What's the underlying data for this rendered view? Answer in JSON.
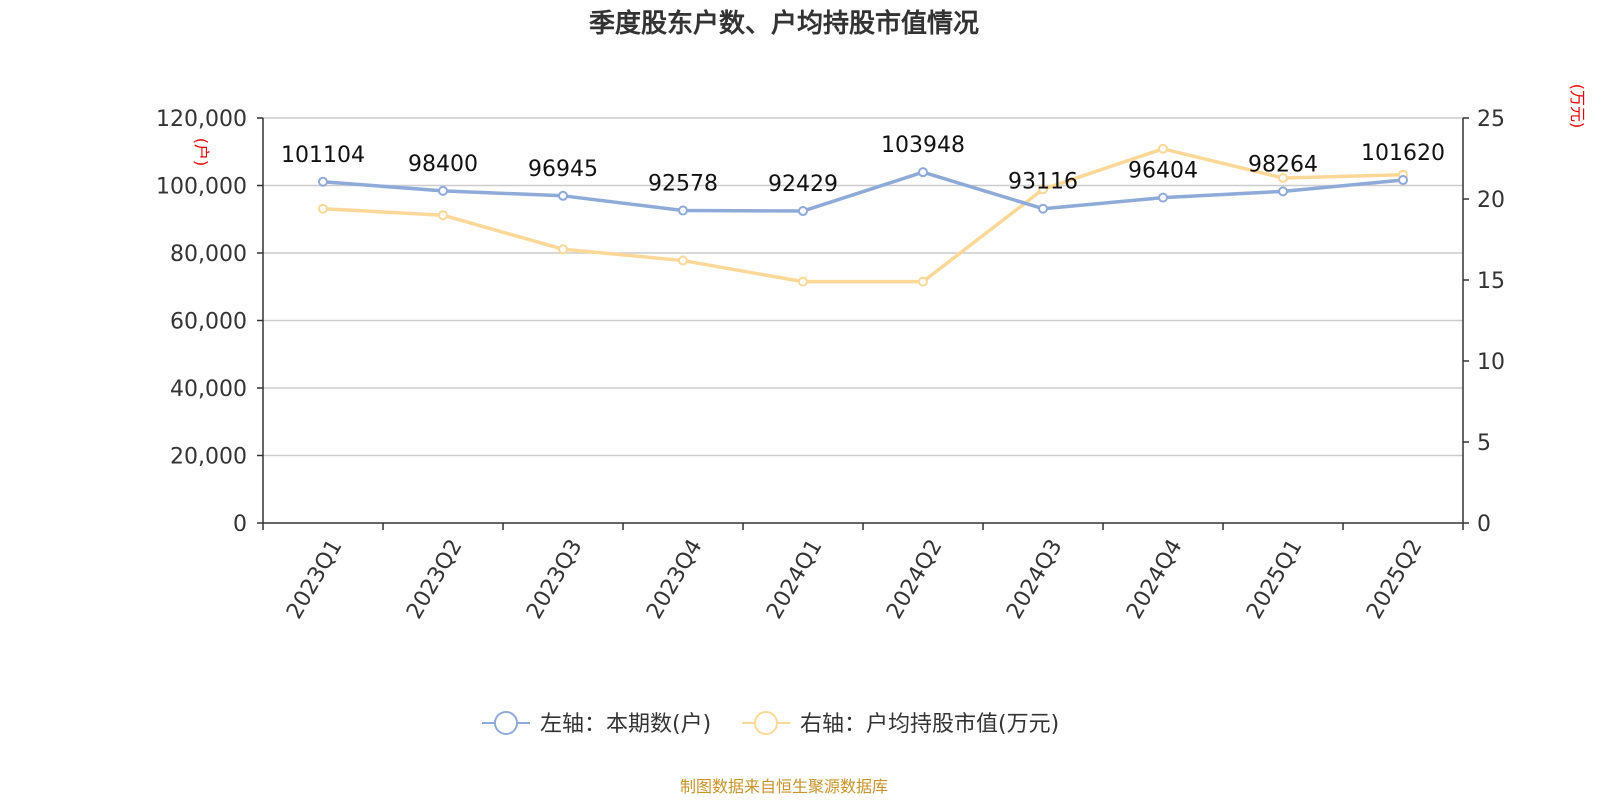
{
  "chart_data": {
    "type": "line",
    "title": "季度股东户数、户均持股市值情况",
    "categories": [
      "2023Q1",
      "2023Q2",
      "2023Q3",
      "2023Q4",
      "2024Q1",
      "2024Q2",
      "2024Q3",
      "2024Q4",
      "2025Q1",
      "2025Q2"
    ],
    "left_axis": {
      "unit": "(户)",
      "ylim": [
        0,
        120000
      ],
      "ticks": [
        "0",
        "20,000",
        "40,000",
        "60,000",
        "80,000",
        "100,000",
        "120,000"
      ],
      "tick_values": [
        0,
        20000,
        40000,
        60000,
        80000,
        100000,
        120000
      ]
    },
    "right_axis": {
      "unit": "(万元)",
      "ylim": [
        0,
        25
      ],
      "ticks": [
        "0",
        "5",
        "10",
        "15",
        "20",
        "25"
      ],
      "tick_values": [
        0,
        5,
        10,
        15,
        20,
        25
      ]
    },
    "series": [
      {
        "name": "左轴：本期数(户)",
        "axis": "left",
        "color": "#8eaad8",
        "values": [
          101104,
          98400,
          96945,
          92578,
          92429,
          103948,
          93116,
          96404,
          98264,
          101620
        ],
        "labels": [
          "101104",
          "98400",
          "96945",
          "92578",
          "92429",
          "103948",
          "93116",
          "96404",
          "98264",
          "101620"
        ]
      },
      {
        "name": "右轴：户均持股市值(万元)",
        "axis": "right",
        "color": "#fcd898",
        "values": [
          19.4,
          19.0,
          16.9,
          16.2,
          14.9,
          14.9,
          20.6,
          23.1,
          21.3,
          21.5
        ]
      }
    ],
    "grid": true,
    "legend_position": "bottom"
  },
  "footer": {
    "source": "制图数据来自恒生聚源数据库"
  }
}
